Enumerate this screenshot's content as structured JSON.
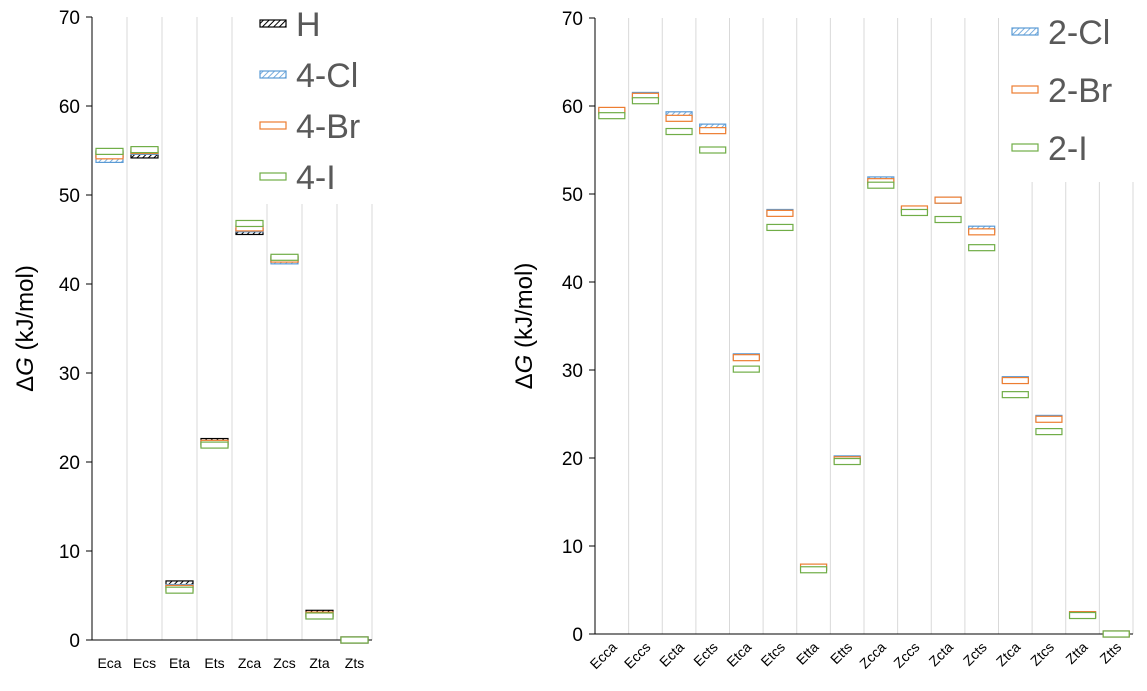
{
  "chart_data": [
    {
      "type": "floating-bar",
      "title": "",
      "xlabel": "",
      "ylabel": "ΔG (kJ/mol)",
      "ylabel_delta": "Δ",
      "ylabel_var": "G",
      "ylabel_unit": " (kJ/mol)",
      "ylim": [
        0,
        70
      ],
      "yticks": [
        0,
        10,
        20,
        30,
        40,
        50,
        60,
        70
      ],
      "grid": "vertical",
      "legend": "top-right",
      "categories": [
        "Eca",
        "Ecs",
        "Eta",
        "Ets",
        "Zca",
        "Zcs",
        "Zta",
        "Zts"
      ],
      "series": [
        {
          "name": "H",
          "color": "#000000",
          "pattern": "hatch-dense",
          "values": [
            54.6,
            54.5,
            6.3,
            22.3,
            45.9,
            42.8,
            3.0,
            0
          ]
        },
        {
          "name": "4-Cl",
          "color": "#5b9bd5",
          "pattern": "hatch-light",
          "values": [
            54.0,
            54.9,
            5.9,
            22.0,
            46.2,
            42.6,
            2.7,
            0
          ]
        },
        {
          "name": "4-Br",
          "color": "#ed7d31",
          "pattern": "solid",
          "values": [
            54.4,
            55.0,
            5.8,
            22.1,
            46.3,
            42.8,
            2.8,
            0
          ]
        },
        {
          "name": "4-I",
          "color": "#70ad47",
          "pattern": "outline",
          "values": [
            54.9,
            55.1,
            5.6,
            21.9,
            46.8,
            43.0,
            2.7,
            0
          ]
        }
      ]
    },
    {
      "type": "floating-bar",
      "title": "",
      "xlabel": "",
      "ylabel": "ΔG (kJ/mol)",
      "ylabel_delta": "Δ",
      "ylabel_var": "G",
      "ylabel_unit": " (kJ/mol)",
      "ylim": [
        0,
        70
      ],
      "yticks": [
        0,
        10,
        20,
        30,
        40,
        50,
        60,
        70
      ],
      "grid": "vertical",
      "legend": "top-right",
      "categories": [
        "Ecca",
        "Eccs",
        "Ecta",
        "Ects",
        "Etca",
        "Etcs",
        "Etta",
        "Etts",
        "Zcca",
        "Zccs",
        "Zcta",
        "Zcts",
        "Ztca",
        "Ztcs",
        "Ztta",
        "Ztts"
      ],
      "series": [
        {
          "name": "2-Cl",
          "color": "#5b9bd5",
          "pattern": "hatch-light",
          "values": [
            59.4,
            61.2,
            59.0,
            57.6,
            31.5,
            47.9,
            7.6,
            19.9,
            51.6,
            48.2,
            49.3,
            46.0,
            28.9,
            24.5,
            2.2,
            0
          ]
        },
        {
          "name": "2-Br",
          "color": "#ed7d31",
          "pattern": "outline",
          "values": [
            59.5,
            61.1,
            58.6,
            57.2,
            31.4,
            47.8,
            7.6,
            19.8,
            51.4,
            48.3,
            49.3,
            45.7,
            28.8,
            24.4,
            2.2,
            0
          ]
        },
        {
          "name": "2-I",
          "color": "#70ad47",
          "pattern": "outline",
          "values": [
            58.9,
            60.6,
            57.1,
            55.0,
            30.1,
            46.2,
            7.3,
            19.6,
            51.0,
            47.9,
            47.1,
            43.9,
            27.2,
            23.0,
            2.1,
            0
          ]
        }
      ]
    }
  ]
}
